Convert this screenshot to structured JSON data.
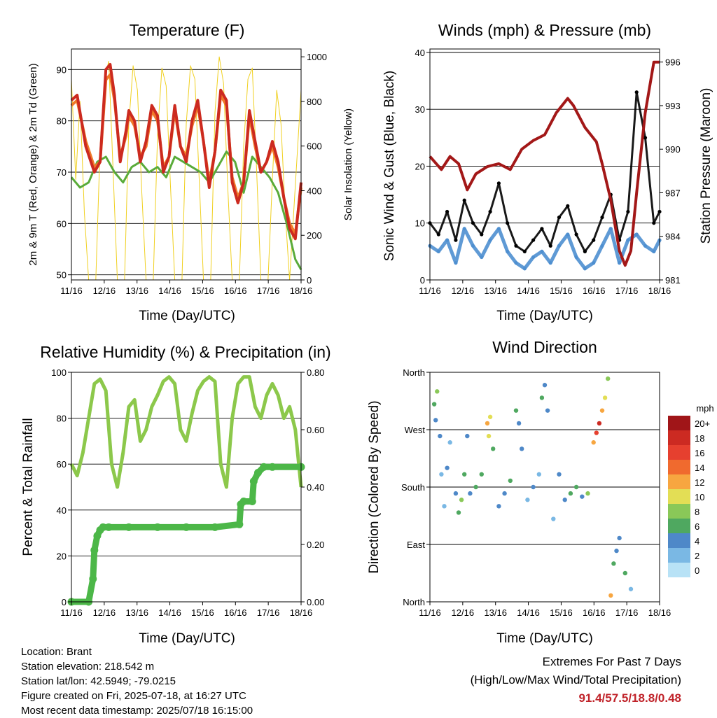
{
  "info": {
    "location": "Location: Brant",
    "elevation": "Station elevation: 218.542 m",
    "latlon": "Station lat/lon: 42.5949; -79.0215",
    "created": "Figure created on Fri, 2025-07-18, at 16:27 UTC",
    "recent": "Most recent data timestamp: 2025/07/18 16:15:00"
  },
  "extremes": {
    "title": "Extremes For Past 7 Days",
    "subtitle": "(High/Low/Max Wind/Total Precipitation)",
    "values": "91.4/57.5/18.8/0.48"
  },
  "chart_data": [
    {
      "type": "line",
      "title": "Temperature (F)",
      "xlabel": "Time (Day/UTC)",
      "ylabel": "2m & 9m T (Red, Orange) & 2m Td (Green)",
      "ylabel_right": "Solar Insolation (Yellow)",
      "x_ticks": [
        "11/16",
        "12/16",
        "13/16",
        "14/16",
        "15/16",
        "16/16",
        "17/16",
        "18/16"
      ],
      "ylim": [
        49,
        94
      ],
      "y_ticks": [
        50,
        60,
        70,
        80,
        90
      ],
      "ylim_right": [
        0,
        1035
      ],
      "y_ticks_right": [
        0,
        200,
        400,
        600,
        800,
        1000
      ],
      "grid": "horizontal",
      "series": [
        {
          "name": "2m T",
          "color": "#cc2a1f",
          "x": [
            0,
            0.2,
            0.5,
            0.8,
            1.0,
            1.2,
            1.35,
            1.5,
            1.7,
            1.9,
            2.0,
            2.2,
            2.4,
            2.6,
            2.8,
            3.0,
            3.2,
            3.4,
            3.6,
            3.8,
            4.0,
            4.2,
            4.4,
            4.6,
            4.8,
            5.0,
            5.2,
            5.4,
            5.6,
            5.8,
            6.0,
            6.2,
            6.4,
            6.6,
            6.8,
            7.0,
            7.2,
            7.4,
            7.6,
            7.8,
            8.0
          ],
          "values": [
            84,
            85,
            75,
            70,
            72,
            90,
            91,
            85,
            72,
            78,
            82,
            80,
            72,
            76,
            83,
            81,
            70,
            73,
            83,
            75,
            72,
            80,
            84,
            76,
            67,
            74,
            86,
            84,
            68,
            64,
            68,
            82,
            76,
            70,
            72,
            76,
            72,
            65,
            59,
            57,
            68
          ]
        },
        {
          "name": "9m T",
          "color": "#f07a2a",
          "x": [
            0,
            0.2,
            0.5,
            0.8,
            1.0,
            1.2,
            1.35,
            1.5,
            1.7,
            1.9,
            2.0,
            2.2,
            2.4,
            2.6,
            2.8,
            3.0,
            3.2,
            3.4,
            3.6,
            3.8,
            4.0,
            4.2,
            4.4,
            4.6,
            4.8,
            5.0,
            5.2,
            5.4,
            5.6,
            5.8,
            6.0,
            6.2,
            6.4,
            6.6,
            6.8,
            7.0,
            7.2,
            7.4,
            7.6,
            7.8,
            8.0
          ],
          "values": [
            83,
            84,
            76,
            71,
            72,
            88,
            89,
            84,
            73,
            77,
            81,
            79,
            73,
            75,
            82,
            80,
            71,
            73,
            82,
            75,
            73,
            79,
            83,
            76,
            68,
            74,
            85,
            83,
            69,
            65,
            68,
            81,
            75,
            70,
            72,
            75,
            71,
            65,
            60,
            58,
            67
          ]
        },
        {
          "name": "2m Td",
          "color": "#5aab3a",
          "x": [
            0,
            0.3,
            0.6,
            0.9,
            1.2,
            1.5,
            1.8,
            2.1,
            2.4,
            2.7,
            3.0,
            3.3,
            3.6,
            3.9,
            4.2,
            4.5,
            4.8,
            5.1,
            5.4,
            5.7,
            6.0,
            6.3,
            6.6,
            6.9,
            7.2,
            7.5,
            7.8,
            8.0
          ],
          "values": [
            69,
            67,
            68,
            72,
            73,
            70,
            68,
            71,
            72,
            70,
            71,
            69,
            73,
            72,
            71,
            70,
            68,
            71,
            74,
            72,
            66,
            73,
            71,
            69,
            66,
            60,
            53,
            51
          ]
        },
        {
          "name": "Solar Insolation",
          "color": "#f0d020",
          "axis": "right",
          "x": [
            0,
            0.15,
            0.3,
            0.45,
            0.6,
            0.85,
            1.0,
            1.15,
            1.3,
            1.45,
            1.6,
            1.85,
            2.0,
            2.15,
            2.3,
            2.45,
            2.6,
            2.85,
            3.0,
            3.15,
            3.3,
            3.45,
            3.6,
            3.85,
            4.0,
            4.15,
            4.3,
            4.45,
            4.6,
            4.85,
            5.0,
            5.15,
            5.3,
            5.45,
            5.6,
            5.85,
            6.0,
            6.15,
            6.3,
            6.45,
            6.6,
            6.85,
            7.0,
            7.15,
            7.3,
            7.45,
            7.6,
            8.0
          ],
          "values": [
            900,
            450,
            800,
            300,
            0,
            0,
            600,
            900,
            980,
            500,
            0,
            0,
            700,
            960,
            850,
            400,
            0,
            0,
            650,
            950,
            870,
            420,
            0,
            0,
            700,
            960,
            900,
            450,
            0,
            0,
            750,
            1000,
            880,
            400,
            0,
            0,
            600,
            900,
            950,
            500,
            0,
            0,
            450,
            850,
            700,
            300,
            0,
            850
          ]
        }
      ]
    },
    {
      "type": "scatter",
      "title": "Winds (mph) & Pressure (mb)",
      "xlabel": "Time (Day/UTC)",
      "ylabel": "Sonic Wind & Gust (Blue, Black)",
      "ylabel_right": "Station Pressure (Maroon)",
      "x_ticks": [
        "11/16",
        "12/16",
        "13/16",
        "14/16",
        "15/16",
        "16/16",
        "17/16",
        "18/16"
      ],
      "ylim": [
        0,
        40.6
      ],
      "y_ticks": [
        0,
        10,
        20,
        30,
        40
      ],
      "ylim_right": [
        981,
        996.9
      ],
      "y_ticks_right": [
        981,
        984,
        987,
        990,
        993,
        996
      ],
      "grid": "horizontal",
      "series": [
        {
          "name": "Sonic Wind",
          "color": "#4e8fd0",
          "x": [
            0,
            0.3,
            0.6,
            0.9,
            1.2,
            1.5,
            1.8,
            2.1,
            2.4,
            2.7,
            3.0,
            3.3,
            3.6,
            3.9,
            4.2,
            4.5,
            4.8,
            5.1,
            5.4,
            5.7,
            6.0,
            6.3,
            6.6,
            6.9,
            7.2,
            7.5,
            7.8,
            8.0
          ],
          "values": [
            6,
            5,
            7,
            3,
            9,
            6,
            4,
            7,
            9,
            5,
            3,
            2,
            4,
            5,
            3,
            6,
            8,
            4,
            2,
            3,
            6,
            9,
            3,
            7,
            8,
            6,
            5,
            7
          ]
        },
        {
          "name": "Gust",
          "color": "#000000",
          "x": [
            0,
            0.3,
            0.6,
            0.9,
            1.2,
            1.5,
            1.8,
            2.1,
            2.4,
            2.7,
            3.0,
            3.3,
            3.6,
            3.9,
            4.2,
            4.5,
            4.8,
            5.1,
            5.4,
            5.7,
            6.0,
            6.3,
            6.6,
            6.9,
            7.2,
            7.5,
            7.8,
            8.0
          ],
          "values": [
            10,
            8,
            12,
            7,
            14,
            10,
            8,
            12,
            17,
            10,
            6,
            5,
            7,
            9,
            6,
            11,
            13,
            8,
            5,
            7,
            11,
            15,
            7,
            12,
            33,
            25,
            10,
            12
          ]
        },
        {
          "name": "Station Pressure",
          "color": "#a31818",
          "axis": "right",
          "x": [
            0,
            0.4,
            0.7,
            1.0,
            1.3,
            1.6,
            2.0,
            2.4,
            2.8,
            3.2,
            3.6,
            4.0,
            4.4,
            4.8,
            5.0,
            5.4,
            5.8,
            6.0,
            6.3,
            6.6,
            6.8,
            7.0,
            7.2,
            7.5,
            7.8,
            8.0
          ],
          "values": [
            989.5,
            988.6,
            989.5,
            989,
            987.2,
            988.3,
            988.8,
            989,
            988.6,
            990,
            990.6,
            991,
            992.5,
            993.5,
            993,
            991.5,
            990.5,
            989,
            986.5,
            983,
            982,
            983,
            987,
            992.5,
            996,
            996
          ]
        }
      ]
    },
    {
      "type": "line",
      "title": "Relative Humidity (%) & Precipitation (in)",
      "xlabel": "Time (Day/UTC)",
      "ylabel": "Percent & Total Rainfall",
      "x_ticks": [
        "11/16",
        "12/16",
        "13/16",
        "14/16",
        "15/16",
        "16/16",
        "17/16",
        "18/16"
      ],
      "ylim": [
        0,
        100
      ],
      "y_ticks": [
        0,
        20,
        40,
        60,
        80,
        100
      ],
      "ylim_right": [
        0,
        0.8
      ],
      "y_ticks_right": [
        "0.00",
        "0.20",
        "0.40",
        "0.60",
        "0.80"
      ],
      "grid": "horizontal",
      "series": [
        {
          "name": "Relative Humidity",
          "color": "#8cc84b",
          "x": [
            0,
            0.2,
            0.4,
            0.6,
            0.8,
            1.0,
            1.2,
            1.4,
            1.6,
            1.8,
            2.0,
            2.2,
            2.4,
            2.6,
            2.8,
            3.0,
            3.2,
            3.4,
            3.6,
            3.8,
            4.0,
            4.2,
            4.4,
            4.6,
            4.8,
            5.0,
            5.2,
            5.4,
            5.6,
            5.8,
            6.0,
            6.2,
            6.4,
            6.6,
            6.8,
            7.0,
            7.2,
            7.4,
            7.6,
            7.8,
            8.0
          ],
          "values": [
            60,
            55,
            65,
            80,
            95,
            97,
            92,
            60,
            50,
            65,
            85,
            88,
            70,
            75,
            85,
            90,
            96,
            98,
            95,
            75,
            70,
            82,
            92,
            96,
            98,
            96,
            60,
            50,
            80,
            95,
            98,
            98,
            85,
            80,
            90,
            95,
            90,
            80,
            85,
            75,
            50
          ]
        },
        {
          "name": "Total Precipitation",
          "color": "#4cb748",
          "axis": "right",
          "x": [
            0,
            0.6,
            0.75,
            0.8,
            0.9,
            1.0,
            1.1,
            1.3,
            2.0,
            3.0,
            4.0,
            5.0,
            5.85,
            5.9,
            6.0,
            6.3,
            6.35,
            6.5,
            6.7,
            7.0,
            8.0
          ],
          "values": [
            0,
            0,
            0.08,
            0.18,
            0.23,
            0.25,
            0.26,
            0.26,
            0.26,
            0.26,
            0.26,
            0.26,
            0.27,
            0.34,
            0.35,
            0.35,
            0.42,
            0.45,
            0.47,
            0.47,
            0.47
          ]
        }
      ]
    },
    {
      "type": "scatter",
      "title": "Wind Direction",
      "xlabel": "Time (Day/UTC)",
      "ylabel": "Direction (Colored By Speed)",
      "x_ticks": [
        "11/16",
        "12/16",
        "13/16",
        "14/16",
        "15/16",
        "16/16",
        "17/16",
        "18/16"
      ],
      "y_ticks": [
        "North",
        "East",
        "South",
        "West",
        "North"
      ],
      "y_tick_values": [
        0,
        90,
        180,
        270,
        360
      ],
      "ylim": [
        0,
        360
      ],
      "grid": "horizontal",
      "colorbar": {
        "label": "mph",
        "labels": [
          "20+",
          "18",
          "16",
          "14",
          "12",
          "10",
          "8",
          "6",
          "4",
          "2",
          "0"
        ],
        "colors": [
          "#a01518",
          "#cc2a22",
          "#e6402f",
          "#f06a2e",
          "#f7a640",
          "#e3de55",
          "#8ac858",
          "#4fa860",
          "#4e88c8",
          "#7ab8e4",
          "#b8e2f6"
        ]
      },
      "points": [
        {
          "x": 0.15,
          "dir": 310,
          "speed": 6
        },
        {
          "x": 0.2,
          "dir": 285,
          "speed": 4
        },
        {
          "x": 0.25,
          "dir": 330,
          "speed": 7
        },
        {
          "x": 0.35,
          "dir": 260,
          "speed": 3
        },
        {
          "x": 0.4,
          "dir": 200,
          "speed": 2
        },
        {
          "x": 0.5,
          "dir": 150,
          "speed": 1
        },
        {
          "x": 0.6,
          "dir": 210,
          "speed": 3
        },
        {
          "x": 0.7,
          "dir": 250,
          "speed": 2
        },
        {
          "x": 0.9,
          "dir": 170,
          "speed": 4
        },
        {
          "x": 1.0,
          "dir": 140,
          "speed": 5
        },
        {
          "x": 1.1,
          "dir": 160,
          "speed": 7
        },
        {
          "x": 1.2,
          "dir": 200,
          "speed": 6
        },
        {
          "x": 1.3,
          "dir": 260,
          "speed": 4
        },
        {
          "x": 1.4,
          "dir": 170,
          "speed": 3
        },
        {
          "x": 1.6,
          "dir": 180,
          "speed": 5
        },
        {
          "x": 1.8,
          "dir": 200,
          "speed": 6
        },
        {
          "x": 2.0,
          "dir": 280,
          "speed": 12
        },
        {
          "x": 2.05,
          "dir": 260,
          "speed": 10
        },
        {
          "x": 2.1,
          "dir": 290,
          "speed": 9
        },
        {
          "x": 2.2,
          "dir": 240,
          "speed": 6
        },
        {
          "x": 2.4,
          "dir": 150,
          "speed": 3
        },
        {
          "x": 2.6,
          "dir": 170,
          "speed": 4
        },
        {
          "x": 2.8,
          "dir": 190,
          "speed": 5
        },
        {
          "x": 3.0,
          "dir": 300,
          "speed": 6
        },
        {
          "x": 3.1,
          "dir": 280,
          "speed": 4
        },
        {
          "x": 3.2,
          "dir": 240,
          "speed": 3
        },
        {
          "x": 3.4,
          "dir": 160,
          "speed": 2
        },
        {
          "x": 3.6,
          "dir": 180,
          "speed": 4
        },
        {
          "x": 3.8,
          "dir": 200,
          "speed": 2
        },
        {
          "x": 3.9,
          "dir": 320,
          "speed": 6
        },
        {
          "x": 4.0,
          "dir": 340,
          "speed": 4
        },
        {
          "x": 4.1,
          "dir": 300,
          "speed": 3
        },
        {
          "x": 4.3,
          "dir": 130,
          "speed": 2
        },
        {
          "x": 4.5,
          "dir": 200,
          "speed": 3
        },
        {
          "x": 4.7,
          "dir": 160,
          "speed": 4
        },
        {
          "x": 4.9,
          "dir": 170,
          "speed": 6
        },
        {
          "x": 5.1,
          "dir": 180,
          "speed": 5
        },
        {
          "x": 5.3,
          "dir": 165,
          "speed": 4
        },
        {
          "x": 5.5,
          "dir": 170,
          "speed": 7
        },
        {
          "x": 5.7,
          "dir": 250,
          "speed": 12
        },
        {
          "x": 5.8,
          "dir": 265,
          "speed": 16
        },
        {
          "x": 5.9,
          "dir": 280,
          "speed": 18
        },
        {
          "x": 6.0,
          "dir": 300,
          "speed": 12
        },
        {
          "x": 6.1,
          "dir": 320,
          "speed": 10
        },
        {
          "x": 6.2,
          "dir": 350,
          "speed": 7
        },
        {
          "x": 6.3,
          "dir": 10,
          "speed": 12
        },
        {
          "x": 6.4,
          "dir": 60,
          "speed": 6
        },
        {
          "x": 6.5,
          "dir": 80,
          "speed": 4
        },
        {
          "x": 6.6,
          "dir": 100,
          "speed": 3
        },
        {
          "x": 6.8,
          "dir": 45,
          "speed": 5
        },
        {
          "x": 7.0,
          "dir": 20,
          "speed": 2
        }
      ]
    }
  ]
}
